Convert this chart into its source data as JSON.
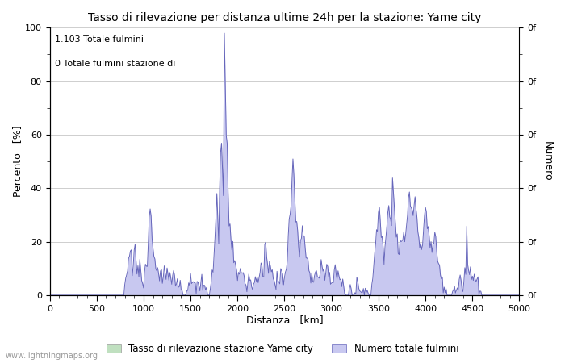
{
  "title": "Tasso di rilevazione per distanza ultime 24h per la stazione: Yame city",
  "xlabel": "Distanza   [km]",
  "ylabel_left": "Percento   [%]",
  "ylabel_right": "Numero",
  "annotation_line1": "1.103 Totale fulmini",
  "annotation_line2": "0 Totale fulmini stazione di",
  "xlim": [
    0,
    5000
  ],
  "ylim": [
    0,
    100
  ],
  "xticks": [
    0,
    500,
    1000,
    1500,
    2000,
    2500,
    3000,
    3500,
    4000,
    4500,
    5000
  ],
  "yticks_left": [
    0,
    20,
    40,
    60,
    80,
    100
  ],
  "right_tick_label": "0f",
  "legend_label_green": "Tasso di rilevazione stazione Yame city",
  "legend_label_blue": "Numero totale fulmini",
  "watermark": "www.lightningmaps.org",
  "fill_blue_color": "#c8c8f0",
  "fill_green_color": "#c0e0c0",
  "line_color": "#6666bb",
  "background_color": "#ffffff",
  "grid_color": "#bbbbbb",
  "figsize": [
    7.0,
    4.5
  ],
  "dpi": 100
}
